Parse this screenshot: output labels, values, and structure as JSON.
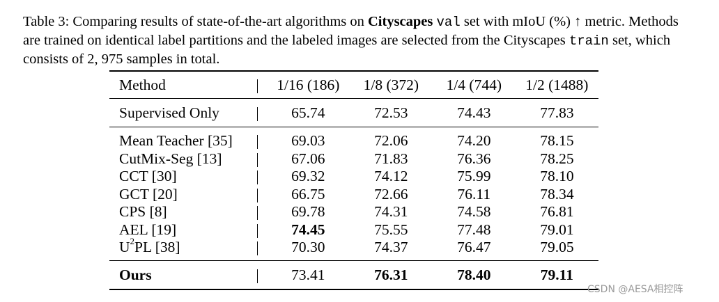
{
  "caption": {
    "part1": "Table 3: Comparing results of state-of-the-art algorithms on ",
    "bold_dataset": "Cityscapes",
    "part2": " ",
    "mono_val": "val",
    "part3": " set with mIoU (%) ↑ metric. Methods are trained on identical label partitions and the labeled images are selected from the Cityscapes ",
    "mono_train": "train",
    "part4": " set, which consists of 2, 975 samples in total."
  },
  "table": {
    "headers": [
      "Method",
      "1/16 (186)",
      "1/8 (372)",
      "1/4 (744)",
      "1/2 (1488)"
    ],
    "supervised": {
      "method": "Supervised Only",
      "values": [
        "65.74",
        "72.53",
        "74.43",
        "77.83"
      ]
    },
    "rows": [
      {
        "method": "Mean Teacher [35]",
        "values": [
          "69.03",
          "72.06",
          "74.20",
          "78.15"
        ]
      },
      {
        "method": "CutMix-Seg [13]",
        "values": [
          "67.06",
          "71.83",
          "76.36",
          "78.25"
        ]
      },
      {
        "method": "CCT [30]",
        "values": [
          "69.32",
          "74.12",
          "75.99",
          "78.10"
        ]
      },
      {
        "method": "GCT [20]",
        "values": [
          "66.75",
          "72.66",
          "76.11",
          "78.34"
        ]
      },
      {
        "method": "CPS [8]",
        "values": [
          "69.78",
          "74.31",
          "74.58",
          "76.81"
        ]
      },
      {
        "method": "AEL [19]",
        "values": [
          "74.45",
          "75.55",
          "77.48",
          "79.01"
        ]
      },
      {
        "method_base": "U",
        "method_sup": "2",
        "method_rest": "PL [38]",
        "values": [
          "70.30",
          "74.37",
          "76.47",
          "79.05"
        ]
      }
    ],
    "ours": {
      "method": "Ours",
      "values": [
        "73.41",
        "76.31",
        "78.40",
        "79.11"
      ]
    }
  },
  "watermark": "CSDN @AESA相控阵"
}
